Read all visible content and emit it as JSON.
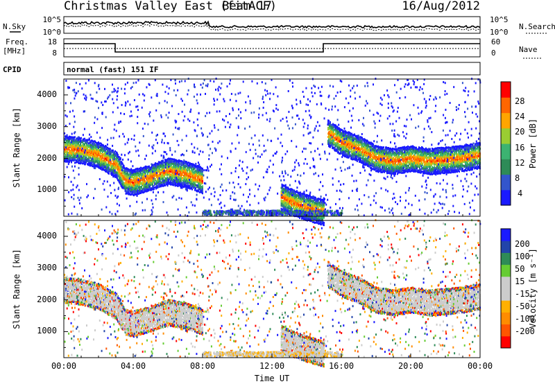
{
  "header": {
    "station": "Christmas Valley East (fitACF)",
    "beam": "Beam 17",
    "date": "16/Aug/2012"
  },
  "top_panels": {
    "nsky_label": "N.Sky",
    "nsearch_label": "N.Search",
    "power_ticks_left": [
      "10^5",
      "10^0"
    ],
    "power_ticks_right": [
      "10^5",
      "10^0"
    ],
    "freq_label": "Freq.",
    "freq_unit": "[MHz]",
    "freq_ticks": [
      "18",
      "8"
    ],
    "nave_label": "Nave",
    "nave_ticks": [
      "60",
      "0"
    ],
    "cpid_label": "CPID",
    "cpid_value": "normal (fast) 151 IF"
  },
  "colors": {
    "power_scale": [
      "#1a1aff",
      "#3355cc",
      "#2e8b57",
      "#3cb371",
      "#9acd32",
      "#ffa500",
      "#ff6600",
      "#ff0000"
    ],
    "velocity_scale": [
      "#ff0000",
      "#ff5500",
      "#ff8c00",
      "#ffb000",
      "#cccccc",
      "#cccccc",
      "#66cc33",
      "#2e8b57",
      "#2244aa",
      "#1a1aff"
    ]
  },
  "chart_data": [
    {
      "type": "heatmap",
      "title": "",
      "ylabel": "Slant Range [km]",
      "xlabel": "",
      "ylim": [
        180,
        4500
      ],
      "xlim": [
        0,
        24
      ],
      "yticks": [
        "4000",
        "3000",
        "2000",
        "1000"
      ],
      "colorbar": {
        "label": "Power [dB]",
        "ticks": [
          "28",
          "24",
          "20",
          "16",
          "12",
          "8",
          "4"
        ],
        "range": [
          0,
          32
        ]
      },
      "series": [
        {
          "name": "",
          "x": [
            0,
            1,
            2,
            3,
            3.5,
            4,
            5,
            6,
            7,
            8
          ],
          "y": [
            2300,
            2250,
            2100,
            1800,
            1300,
            1250,
            1400,
            1600,
            1500,
            1300
          ]
        },
        {
          "name": "",
          "x": [
            15.2,
            16,
            17,
            18,
            19,
            20,
            21,
            22,
            23,
            24
          ],
          "y": [
            2800,
            2500,
            2300,
            2000,
            1900,
            2000,
            1900,
            1950,
            2000,
            2100
          ]
        },
        {
          "name": "",
          "x": [
            12.5,
            13,
            14,
            15
          ],
          "y": [
            800,
            650,
            450,
            300
          ]
        }
      ]
    },
    {
      "type": "heatmap",
      "title": "",
      "ylabel": "Slant Range [km]",
      "xlabel": "Time UT",
      "ylim": [
        180,
        4500
      ],
      "xlim": [
        0,
        24
      ],
      "yticks": [
        "4000",
        "3000",
        "2000",
        "1000"
      ],
      "xticks": [
        "00:00",
        "04:00",
        "08:00",
        "12:00",
        "16:00",
        "20:00",
        "00:00"
      ],
      "colorbar": {
        "label": "Velocity [m s⁻¹]",
        "ticks": [
          "200",
          "100",
          "50",
          "15",
          "-15",
          "-50",
          "-100",
          "-200"
        ],
        "range": [
          -250,
          250
        ]
      }
    }
  ]
}
